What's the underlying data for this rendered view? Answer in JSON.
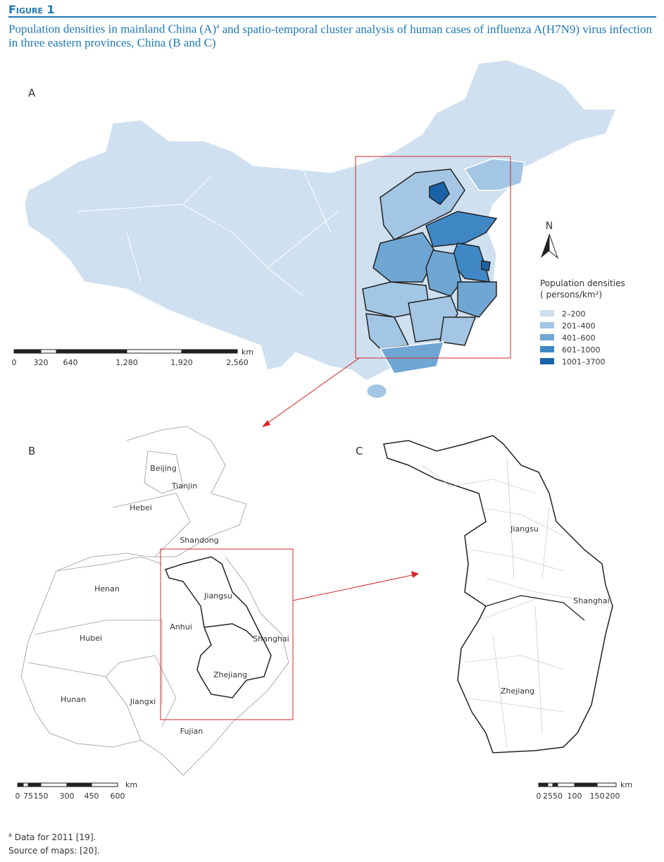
{
  "header": {
    "figure_label": "Figure 1",
    "caption": {
      "before": "Population densities in mainland China (A)",
      "sup": "a",
      "after": "and spatio-temporal cluster analysis of human cases of influenza A(H7N9) virus infection in three eastern provinces, China (B and C)"
    }
  },
  "panel_a": {
    "label": "A",
    "north": "N",
    "legend": {
      "title": "Population densities",
      "unit": "( persons/km²)",
      "items": [
        {
          "label": "2–200",
          "color": "#cfe0f0"
        },
        {
          "label": "201–400",
          "color": "#a3c6e4"
        },
        {
          "label": "401–600",
          "color": "#6fa6d4"
        },
        {
          "label": "601–1000",
          "color": "#3f88c5"
        },
        {
          "label": "1001–3700",
          "color": "#1a63a8"
        }
      ]
    },
    "scale": {
      "unit": "km",
      "ticks": [
        "0",
        "320",
        "640",
        "1,280",
        "1,920",
        "2,560"
      ]
    }
  },
  "panel_b": {
    "label": "B",
    "provinces": [
      "Beijing",
      "Tianjin",
      "Hebei",
      "Shandong",
      "Henan",
      "Jiangsu",
      "Anhui",
      "Shanghai",
      "Hubei",
      "Zhejiang",
      "Hunan",
      "Jiangxi",
      "Fujian"
    ],
    "scale": {
      "unit": "km",
      "ticks": [
        "0",
        "75",
        "150",
        "300",
        "450",
        "600"
      ]
    }
  },
  "panel_c": {
    "label": "C",
    "provinces": [
      "Jiangsu",
      "Shanghai",
      "Zhejiang"
    ],
    "scale": {
      "unit": "km",
      "ticks": [
        "0",
        "25",
        "50",
        "100",
        "150",
        "200"
      ]
    }
  },
  "footnote": {
    "sup": "a",
    "note": "Data for 2011 [19].",
    "source": "Source of maps: [20]."
  }
}
